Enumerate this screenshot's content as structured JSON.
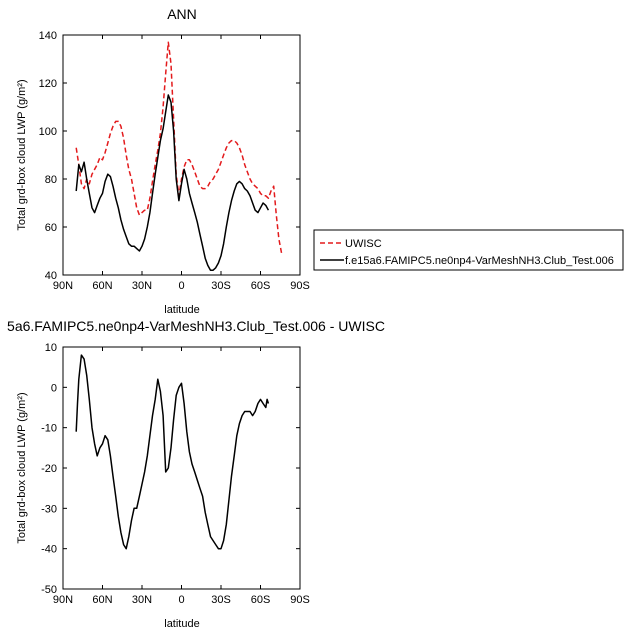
{
  "chart_data": [
    {
      "type": "line",
      "title": "ANN",
      "xlabel": "latitude",
      "ylabel": "Total grd-box cloud LWP (g/m²)",
      "xlim": [
        90,
        -90
      ],
      "ylim": [
        40,
        140
      ],
      "xticks": [
        90,
        60,
        30,
        0,
        -30,
        -60,
        -90
      ],
      "xtick_labels": [
        "90N",
        "60N",
        "30N",
        "0",
        "30S",
        "60S",
        "90S"
      ],
      "yticks": [
        40,
        60,
        80,
        100,
        120,
        140
      ],
      "ytick_labels": [
        "40",
        "60",
        "80",
        "100",
        "120",
        "140"
      ],
      "legend_position": "right",
      "legend_colors": {
        "UWISC": "#e31a1c",
        "model": "#000000"
      },
      "series": [
        {
          "name": "UWISC",
          "color": "#e31a1c",
          "dash": "dashed",
          "x": [
            80,
            78,
            76,
            74,
            72,
            70,
            68,
            66,
            64,
            62,
            60,
            58,
            56,
            54,
            52,
            50,
            48,
            46,
            44,
            42,
            40,
            38,
            36,
            34,
            32,
            30,
            28,
            26,
            24,
            22,
            20,
            18,
            16,
            14,
            12,
            10,
            8,
            6,
            4,
            2,
            0,
            -2,
            -4,
            -6,
            -8,
            -10,
            -12,
            -14,
            -16,
            -18,
            -20,
            -22,
            -24,
            -26,
            -28,
            -30,
            -32,
            -34,
            -36,
            -38,
            -40,
            -42,
            -44,
            -46,
            -48,
            -50,
            -52,
            -54,
            -56,
            -58,
            -60,
            -62,
            -64,
            -66,
            -68,
            -70,
            -72,
            -74,
            -76
          ],
          "values": [
            93,
            86,
            78,
            76,
            80,
            78,
            82,
            84,
            86,
            89,
            88,
            91,
            95,
            99,
            102,
            104,
            104,
            102,
            97,
            90,
            84,
            80,
            74,
            68,
            65,
            66,
            67,
            67,
            72,
            79,
            86,
            92,
            99,
            110,
            124,
            137,
            128,
            105,
            82,
            73,
            80,
            85,
            88,
            88,
            86,
            83,
            80,
            77,
            76,
            76,
            77,
            79,
            80,
            82,
            84,
            87,
            90,
            93,
            95,
            96,
            96,
            95,
            93,
            90,
            86,
            83,
            80,
            78,
            77,
            76,
            74,
            73,
            73,
            72,
            75,
            77,
            65,
            55,
            49
          ]
        },
        {
          "name": "f.e15a6.FAMIPC5.ne0np4-VarMeshNH3.Club_Test.006",
          "color": "#000000",
          "dash": "solid",
          "x": [
            80,
            78,
            76,
            74,
            72,
            70,
            68,
            66,
            64,
            62,
            60,
            58,
            56,
            54,
            52,
            50,
            48,
            46,
            44,
            42,
            40,
            38,
            36,
            34,
            32,
            30,
            28,
            26,
            24,
            22,
            20,
            18,
            16,
            14,
            12,
            10,
            8,
            6,
            4,
            2,
            0,
            -2,
            -4,
            -6,
            -8,
            -10,
            -12,
            -14,
            -16,
            -18,
            -20,
            -22,
            -24,
            -26,
            -28,
            -30,
            -32,
            -34,
            -36,
            -38,
            -40,
            -42,
            -44,
            -46,
            -48,
            -50,
            -52,
            -54,
            -56,
            -58,
            -60,
            -62,
            -64,
            -66
          ],
          "values": [
            75,
            86,
            83,
            87,
            80,
            74,
            68,
            66,
            69,
            72,
            74,
            79,
            82,
            81,
            77,
            72,
            68,
            63,
            59,
            56,
            53,
            52,
            52,
            51,
            50,
            52,
            55,
            60,
            66,
            74,
            82,
            89,
            96,
            101,
            108,
            115,
            112,
            100,
            80,
            71,
            78,
            84,
            80,
            74,
            70,
            66,
            62,
            57,
            52,
            47,
            44,
            42,
            42,
            43,
            45,
            48,
            53,
            60,
            66,
            71,
            75,
            78,
            79,
            78,
            76,
            75,
            73,
            70,
            67,
            66,
            68,
            70,
            69,
            67
          ]
        }
      ]
    },
    {
      "type": "line",
      "title": "5a6.FAMIPC5.ne0np4-VarMeshNH3.Club_Test.006 - UWISC",
      "xlabel": "latitude",
      "ylabel": "Total grd-box cloud LWP (g/m²)",
      "xlim": [
        90,
        -90
      ],
      "ylim": [
        -50,
        10
      ],
      "xticks": [
        90,
        60,
        30,
        0,
        -30,
        -60,
        -90
      ],
      "xtick_labels": [
        "90N",
        "60N",
        "30N",
        "0",
        "30S",
        "60S",
        "90S"
      ],
      "yticks": [
        -50,
        -40,
        -30,
        -20,
        -10,
        0,
        10
      ],
      "ytick_labels": [
        "-50",
        "-40",
        "-30",
        "-20",
        "-10",
        "0",
        "10"
      ],
      "series": [
        {
          "color": "#000000",
          "dash": "solid",
          "x": [
            80,
            79,
            78,
            76,
            74,
            72,
            70,
            68,
            66,
            64,
            62,
            60,
            58,
            56,
            54,
            52,
            50,
            48,
            46,
            44,
            42,
            40,
            38,
            36,
            34,
            32,
            30,
            28,
            26,
            24,
            22,
            20,
            18,
            16,
            14,
            12,
            10,
            8,
            6,
            4,
            2,
            0,
            -2,
            -4,
            -6,
            -8,
            -10,
            -12,
            -14,
            -16,
            -18,
            -20,
            -22,
            -24,
            -26,
            -28,
            -30,
            -32,
            -34,
            -36,
            -38,
            -40,
            -42,
            -44,
            -46,
            -48,
            -50,
            -52,
            -54,
            -56,
            -58,
            -60,
            -62,
            -64,
            -65,
            -66
          ],
          "values": [
            -11,
            -4,
            2,
            8,
            7,
            3,
            -3,
            -10,
            -14,
            -17,
            -15,
            -14,
            -12,
            -13,
            -17,
            -22,
            -27,
            -32,
            -36,
            -39,
            -40,
            -37,
            -33,
            -30,
            -30,
            -27,
            -24,
            -21,
            -17,
            -12,
            -7,
            -3,
            2,
            -1,
            -7,
            -21,
            -20,
            -15,
            -8,
            -2,
            0,
            1,
            -4,
            -11,
            -16,
            -19,
            -21,
            -23,
            -25,
            -27,
            -31,
            -34,
            -37,
            -38,
            -39,
            -40,
            -40,
            -38,
            -34,
            -28,
            -22,
            -17,
            -12,
            -9,
            -7,
            -6,
            -6,
            -6,
            -7,
            -6,
            -4,
            -3,
            -4,
            -5,
            -3,
            -4
          ]
        }
      ]
    }
  ]
}
